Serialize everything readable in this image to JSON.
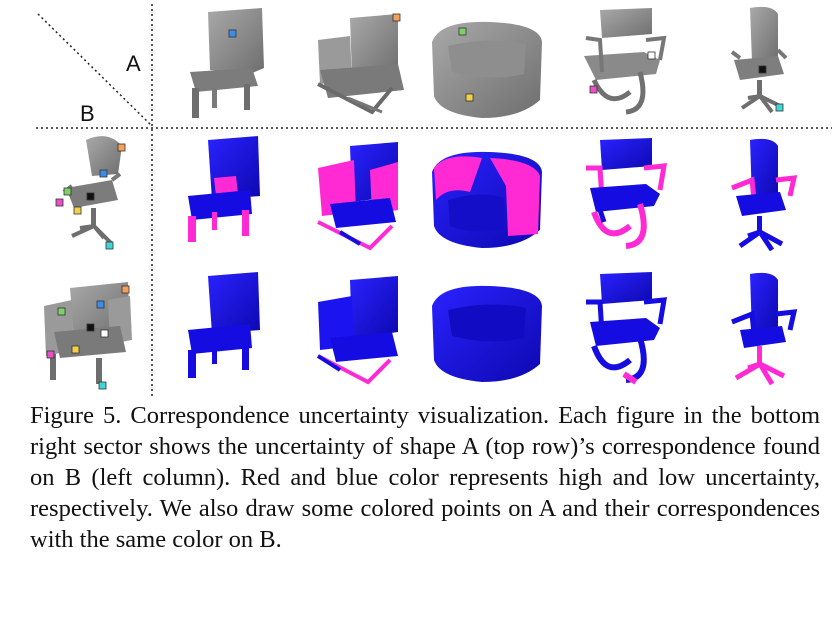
{
  "header": {
    "label_a": "A",
    "label_b": "B"
  },
  "caption": {
    "text": "Figure 5. Correspondence uncertainty visualization. Each figure in the bottom right sector shows the uncertainty of shape A (top row)’s correspondence found on B (left column). Red and blue color represents high and low uncertainty, respectively. We also draw some colored points on A and their correspondences with the same color on B."
  },
  "colors": {
    "shape_gray": "#8a8a8a",
    "low_uncertainty": "#1a10e6",
    "high_uncertainty": "#ff2ad4"
  },
  "marker_colors": [
    "#3b8ee8",
    "#f4a05a",
    "#7fd06a",
    "#f2d04a",
    "#111111",
    "#ffffff",
    "#e84fc9",
    "#3ed6d6"
  ]
}
